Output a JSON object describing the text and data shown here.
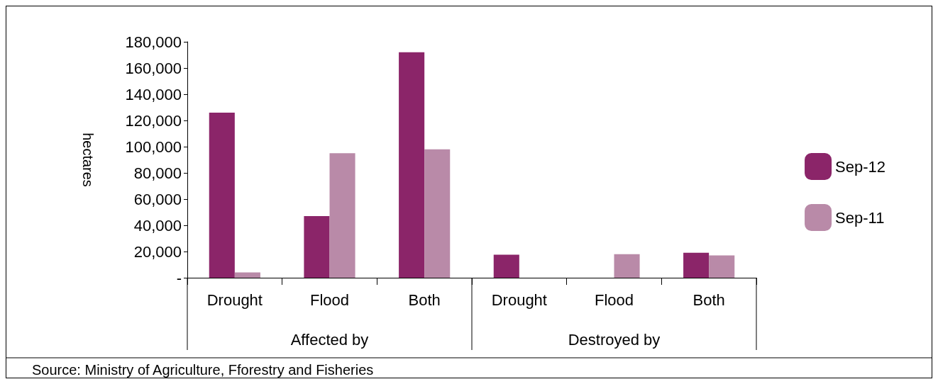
{
  "chart_data": {
    "type": "bar",
    "ylabel": "hectares",
    "categories": [
      "Drought",
      "Flood",
      "Both",
      "Drought",
      "Flood",
      "Both"
    ],
    "series": [
      {
        "name": "Sep-12",
        "color": "#8b2569",
        "values": [
          126000,
          47000,
          172000,
          17600,
          0,
          19000
        ]
      },
      {
        "name": "Sep-11",
        "color": "#b98aa8",
        "values": [
          4000,
          95000,
          98000,
          0,
          18000,
          17000
        ]
      }
    ],
    "ylim": [
      0,
      180000
    ],
    "yticks": [
      {
        "value": 0,
        "label": "-"
      },
      {
        "value": 20000,
        "label": "20,000"
      },
      {
        "value": 40000,
        "label": "40,000"
      },
      {
        "value": 60000,
        "label": "60,000"
      },
      {
        "value": 80000,
        "label": "80,000"
      },
      {
        "value": 100000,
        "label": "100,000"
      },
      {
        "value": 120000,
        "label": "120,000"
      },
      {
        "value": 140000,
        "label": "140,000"
      },
      {
        "value": 160000,
        "label": "160,000"
      },
      {
        "value": 180000,
        "label": "180,000"
      }
    ],
    "grid": false,
    "legend": "right",
    "annotations": [
      "Affected by",
      "Destroyed by",
      "Source: Ministry of Agriculture, Fforestry and Fisheries"
    ]
  }
}
